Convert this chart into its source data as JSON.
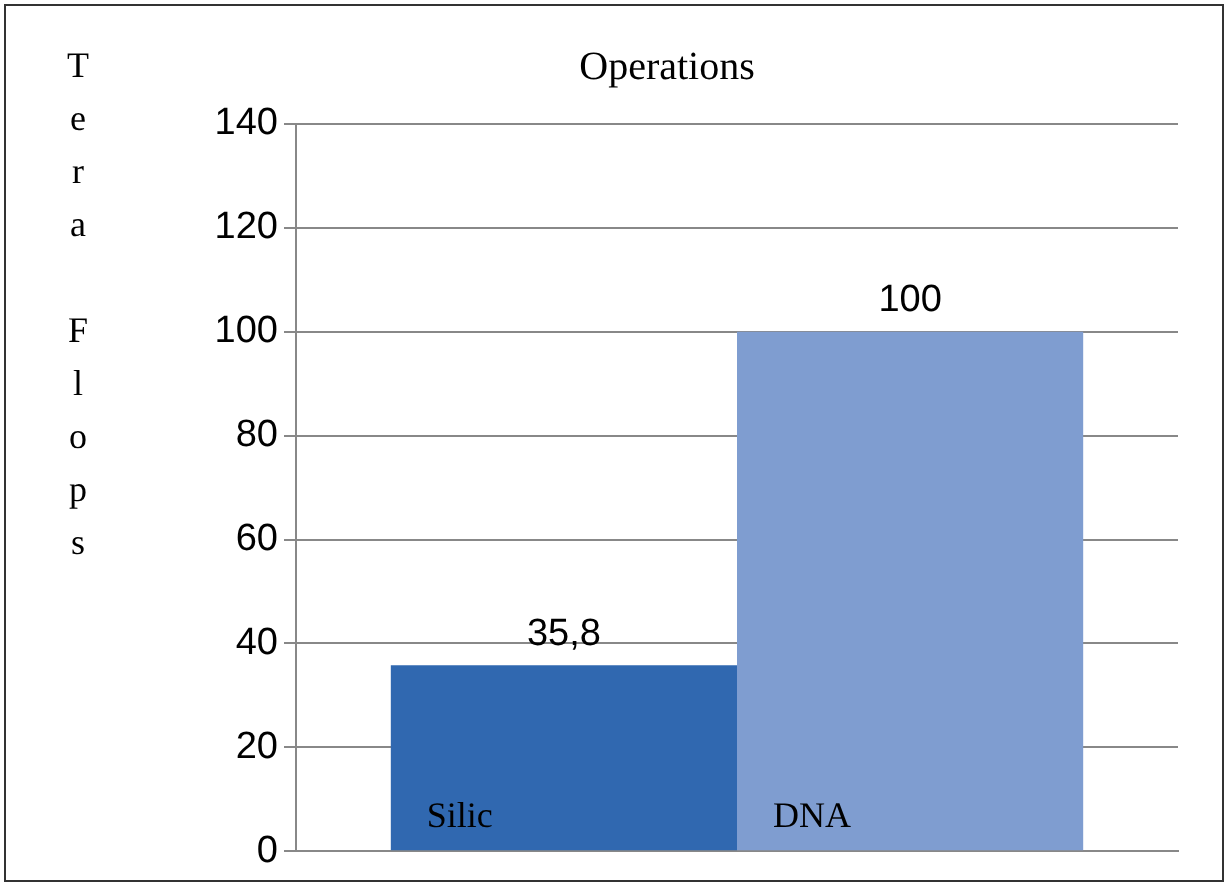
{
  "chart_data": {
    "type": "bar",
    "title": "Operations",
    "ylabel": "Tera Flops",
    "categories": [
      null
    ],
    "series": [
      {
        "name": "Silic",
        "color": "#3068b0",
        "values": [
          35.8
        ],
        "value_labels": [
          "35,8"
        ]
      },
      {
        "name": "DNA",
        "color": "#7f9dd0",
        "values": [
          100
        ],
        "value_labels": [
          "100"
        ]
      }
    ],
    "ylim": [
      0,
      140
    ],
    "yticks": [
      0,
      20,
      40,
      60,
      80,
      100,
      120,
      140
    ],
    "grid": "y",
    "legend": false
  }
}
